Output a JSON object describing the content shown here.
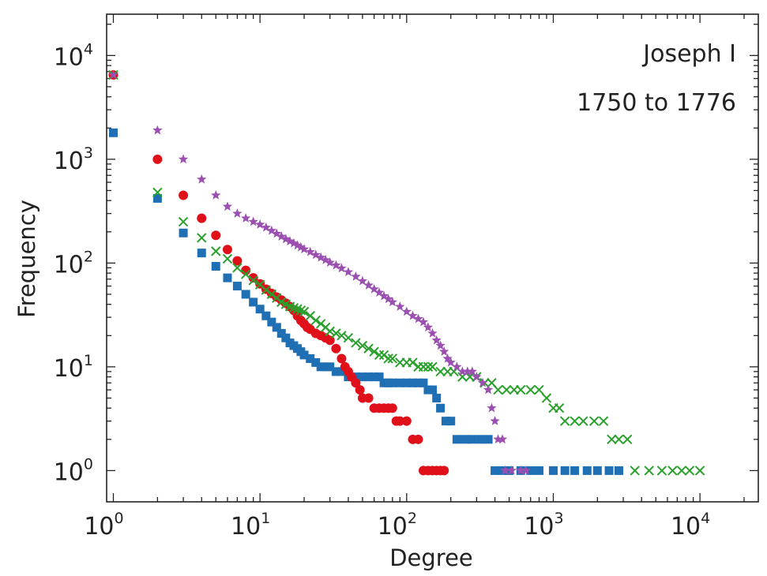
{
  "chart_data": {
    "type": "scatter",
    "xlabel": "Degree",
    "ylabel": "Frequency",
    "xscale": "log",
    "yscale": "log",
    "xlim": [
      0.9,
      25000
    ],
    "ylim": [
      0.5,
      25000
    ],
    "xticks": [
      {
        "base": "10",
        "exp": "0"
      },
      {
        "base": "10",
        "exp": "1"
      },
      {
        "base": "10",
        "exp": "2"
      },
      {
        "base": "10",
        "exp": "3"
      },
      {
        "base": "10",
        "exp": "4"
      }
    ],
    "yticks": [
      {
        "base": "10",
        "exp": "0"
      },
      {
        "base": "10",
        "exp": "1"
      },
      {
        "base": "10",
        "exp": "2"
      },
      {
        "base": "10",
        "exp": "3"
      },
      {
        "base": "10",
        "exp": "4"
      }
    ],
    "annotations": [
      "Joseph I",
      "1750 to 1776"
    ],
    "grid": false,
    "series": [
      {
        "marker": "square",
        "color": "#1f6fb4",
        "points": [
          [
            1,
            1800
          ],
          [
            2,
            420
          ],
          [
            3,
            195
          ],
          [
            4,
            125
          ],
          [
            5,
            93
          ],
          [
            6,
            72
          ],
          [
            7,
            60
          ],
          [
            8,
            50
          ],
          [
            9,
            42
          ],
          [
            10,
            36
          ],
          [
            11,
            31
          ],
          [
            12,
            27
          ],
          [
            13,
            24
          ],
          [
            14,
            21
          ],
          [
            15,
            19
          ],
          [
            16,
            17
          ],
          [
            17,
            16
          ],
          [
            18,
            15
          ],
          [
            19,
            14
          ],
          [
            20,
            13
          ],
          [
            22,
            12
          ],
          [
            24,
            11
          ],
          [
            26,
            10
          ],
          [
            28,
            10
          ],
          [
            30,
            10
          ],
          [
            33,
            9
          ],
          [
            36,
            9
          ],
          [
            40,
            8
          ],
          [
            45,
            8
          ],
          [
            50,
            8
          ],
          [
            55,
            8
          ],
          [
            60,
            8
          ],
          [
            65,
            8
          ],
          [
            70,
            7
          ],
          [
            75,
            7
          ],
          [
            80,
            7
          ],
          [
            90,
            7
          ],
          [
            100,
            7
          ],
          [
            110,
            7
          ],
          [
            120,
            7
          ],
          [
            130,
            7
          ],
          [
            140,
            6
          ],
          [
            150,
            6
          ],
          [
            160,
            5
          ],
          [
            170,
            4
          ],
          [
            185,
            3
          ],
          [
            200,
            3
          ],
          [
            220,
            2
          ],
          [
            250,
            2
          ],
          [
            280,
            2
          ],
          [
            320,
            2
          ],
          [
            360,
            2
          ],
          [
            400,
            1
          ],
          [
            450,
            1
          ],
          [
            500,
            1
          ],
          [
            600,
            1
          ],
          [
            700,
            1
          ],
          [
            800,
            1
          ],
          [
            1000,
            1
          ],
          [
            1200,
            1
          ],
          [
            1400,
            1
          ],
          [
            1700,
            1
          ],
          [
            2000,
            1
          ],
          [
            2400,
            1
          ],
          [
            2800,
            1
          ]
        ]
      },
      {
        "marker": "circle",
        "color": "#e0101a",
        "points": [
          [
            1,
            6500
          ],
          [
            2,
            1000
          ],
          [
            3,
            450
          ],
          [
            4,
            270
          ],
          [
            5,
            185
          ],
          [
            6,
            135
          ],
          [
            7,
            105
          ],
          [
            8,
            85
          ],
          [
            9,
            72
          ],
          [
            10,
            63
          ],
          [
            11,
            56
          ],
          [
            12,
            51
          ],
          [
            13,
            47
          ],
          [
            14,
            44
          ],
          [
            15,
            41
          ],
          [
            16,
            38
          ],
          [
            17,
            35
          ],
          [
            18,
            31
          ],
          [
            19,
            28
          ],
          [
            20,
            26
          ],
          [
            21,
            24
          ],
          [
            22,
            23
          ],
          [
            24,
            21
          ],
          [
            26,
            20
          ],
          [
            28,
            19
          ],
          [
            30,
            18
          ],
          [
            33,
            15
          ],
          [
            36,
            12
          ],
          [
            38,
            10
          ],
          [
            40,
            9
          ],
          [
            42,
            8
          ],
          [
            45,
            7
          ],
          [
            48,
            6
          ],
          [
            50,
            5
          ],
          [
            55,
            5
          ],
          [
            60,
            4
          ],
          [
            65,
            4
          ],
          [
            70,
            4
          ],
          [
            75,
            4
          ],
          [
            80,
            4
          ],
          [
            85,
            3
          ],
          [
            90,
            3
          ],
          [
            100,
            3
          ],
          [
            110,
            2
          ],
          [
            120,
            2
          ],
          [
            130,
            1
          ],
          [
            140,
            1
          ],
          [
            150,
            1
          ],
          [
            160,
            1
          ],
          [
            170,
            1
          ],
          [
            180,
            1
          ]
        ]
      },
      {
        "marker": "x",
        "color": "#2aa02c",
        "points": [
          [
            1,
            6500
          ],
          [
            2,
            480
          ],
          [
            3,
            250
          ],
          [
            4,
            175
          ],
          [
            5,
            130
          ],
          [
            6,
            110
          ],
          [
            7,
            90
          ],
          [
            8,
            78
          ],
          [
            9,
            68
          ],
          [
            10,
            62
          ],
          [
            11,
            55
          ],
          [
            12,
            50
          ],
          [
            13,
            46
          ],
          [
            14,
            42
          ],
          [
            15,
            40
          ],
          [
            16,
            38
          ],
          [
            17,
            37
          ],
          [
            18,
            36
          ],
          [
            19,
            35
          ],
          [
            20,
            34
          ],
          [
            22,
            31
          ],
          [
            24,
            28
          ],
          [
            26,
            26
          ],
          [
            28,
            24
          ],
          [
            30,
            22
          ],
          [
            33,
            21
          ],
          [
            36,
            20
          ],
          [
            40,
            19
          ],
          [
            45,
            17
          ],
          [
            50,
            16
          ],
          [
            55,
            15
          ],
          [
            60,
            14
          ],
          [
            65,
            13
          ],
          [
            70,
            13
          ],
          [
            75,
            12
          ],
          [
            80,
            12
          ],
          [
            90,
            11
          ],
          [
            100,
            11
          ],
          [
            110,
            11
          ],
          [
            120,
            10
          ],
          [
            130,
            10
          ],
          [
            140,
            10
          ],
          [
            150,
            10
          ],
          [
            170,
            9
          ],
          [
            190,
            9
          ],
          [
            210,
            9
          ],
          [
            240,
            8
          ],
          [
            270,
            8
          ],
          [
            300,
            8
          ],
          [
            340,
            7
          ],
          [
            380,
            7
          ],
          [
            420,
            6
          ],
          [
            480,
            6
          ],
          [
            540,
            6
          ],
          [
            600,
            6
          ],
          [
            700,
            6
          ],
          [
            800,
            6
          ],
          [
            900,
            5
          ],
          [
            1000,
            4
          ],
          [
            1100,
            4
          ],
          [
            1200,
            3
          ],
          [
            1400,
            3
          ],
          [
            1600,
            3
          ],
          [
            1900,
            3
          ],
          [
            2200,
            3
          ],
          [
            2500,
            2
          ],
          [
            2800,
            2
          ],
          [
            3200,
            2
          ],
          [
            3600,
            1
          ],
          [
            4500,
            1
          ],
          [
            5500,
            1
          ],
          [
            6500,
            1
          ],
          [
            7500,
            1
          ],
          [
            8500,
            1
          ],
          [
            10000,
            1
          ]
        ]
      },
      {
        "marker": "star",
        "color": "#9b4fb0",
        "points": [
          [
            1,
            6500
          ],
          [
            2,
            1900
          ],
          [
            3,
            1000
          ],
          [
            4,
            640
          ],
          [
            5,
            450
          ],
          [
            6,
            350
          ],
          [
            7,
            300
          ],
          [
            8,
            270
          ],
          [
            9,
            250
          ],
          [
            10,
            235
          ],
          [
            11,
            220
          ],
          [
            12,
            205
          ],
          [
            13,
            192
          ],
          [
            14,
            180
          ],
          [
            15,
            170
          ],
          [
            16,
            162
          ],
          [
            17,
            155
          ],
          [
            18,
            148
          ],
          [
            19,
            142
          ],
          [
            20,
            136
          ],
          [
            22,
            128
          ],
          [
            24,
            120
          ],
          [
            26,
            113
          ],
          [
            28,
            107
          ],
          [
            30,
            101
          ],
          [
            33,
            95
          ],
          [
            36,
            89
          ],
          [
            40,
            82
          ],
          [
            45,
            74
          ],
          [
            50,
            67
          ],
          [
            55,
            61
          ],
          [
            60,
            56
          ],
          [
            65,
            52
          ],
          [
            70,
            48
          ],
          [
            75,
            45
          ],
          [
            80,
            42
          ],
          [
            90,
            38
          ],
          [
            100,
            34
          ],
          [
            110,
            31
          ],
          [
            120,
            29
          ],
          [
            130,
            27
          ],
          [
            140,
            24
          ],
          [
            150,
            21
          ],
          [
            160,
            18
          ],
          [
            170,
            16
          ],
          [
            180,
            14
          ],
          [
            190,
            12
          ],
          [
            200,
            11
          ],
          [
            220,
            10
          ],
          [
            240,
            9
          ],
          [
            260,
            9
          ],
          [
            280,
            9
          ],
          [
            300,
            8
          ],
          [
            330,
            7
          ],
          [
            360,
            6
          ],
          [
            380,
            4
          ],
          [
            400,
            3
          ],
          [
            420,
            2
          ],
          [
            450,
            2
          ],
          [
            470,
            1
          ],
          [
            520,
            1
          ],
          [
            600,
            1
          ],
          [
            650,
            1
          ]
        ]
      }
    ]
  }
}
